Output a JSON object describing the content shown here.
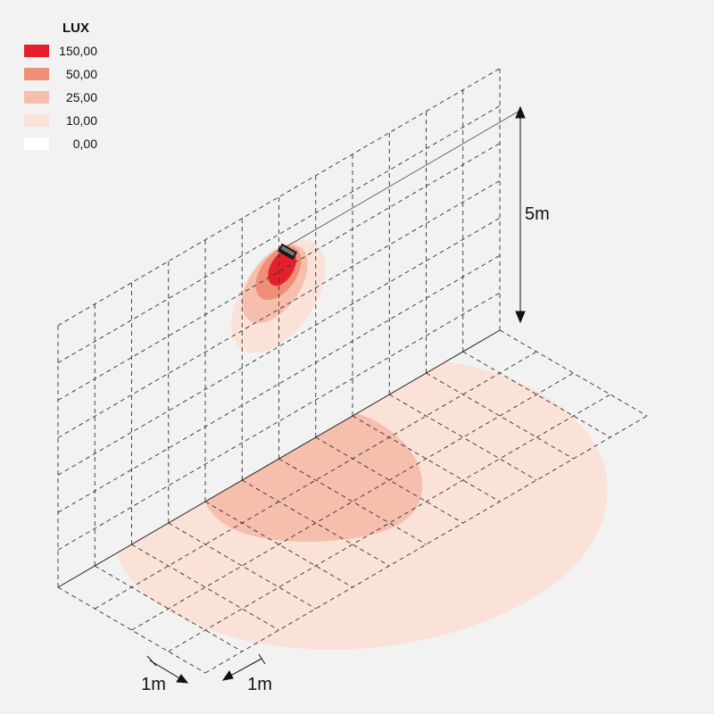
{
  "legend": {
    "title": "LUX",
    "items": [
      {
        "label": "150,00",
        "color": "#e5202c"
      },
      {
        "label": "50,00",
        "color": "#f08f78"
      },
      {
        "label": "25,00",
        "color": "#f6bfad"
      },
      {
        "label": "10,00",
        "color": "#fbe2d8"
      },
      {
        "label": "0,00",
        "color": "#ffffff"
      }
    ]
  },
  "dimensions": {
    "height": "5m",
    "cell_a": "1m",
    "cell_b": "1m"
  }
}
